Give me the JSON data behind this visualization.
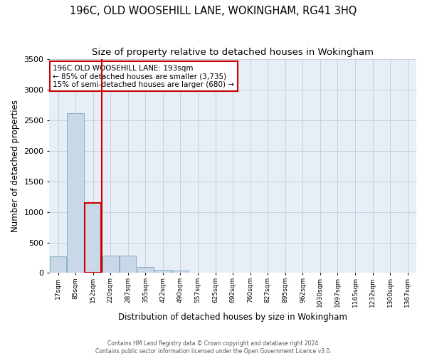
{
  "title": "196C, OLD WOOSEHILL LANE, WOKINGHAM, RG41 3HQ",
  "subtitle": "Size of property relative to detached houses in Wokingham",
  "xlabel": "Distribution of detached houses by size in Wokingham",
  "ylabel": "Number of detached properties",
  "bar_labels": [
    "17sqm",
    "85sqm",
    "152sqm",
    "220sqm",
    "287sqm",
    "355sqm",
    "422sqm",
    "490sqm",
    "557sqm",
    "625sqm",
    "692sqm",
    "760sqm",
    "827sqm",
    "895sqm",
    "962sqm",
    "1030sqm",
    "1097sqm",
    "1165sqm",
    "1232sqm",
    "1300sqm",
    "1367sqm"
  ],
  "bar_values": [
    270,
    2620,
    1150,
    285,
    285,
    95,
    55,
    35,
    0,
    0,
    0,
    0,
    0,
    0,
    0,
    0,
    0,
    0,
    0,
    0,
    0
  ],
  "bar_color": "#c8d8e8",
  "bar_edge_color": "#7aaabf",
  "highlight_bar_index": 2,
  "highlight_edge_color": "#cc0000",
  "property_line_x": 2.5,
  "ylim": [
    0,
    3500
  ],
  "yticks": [
    0,
    500,
    1000,
    1500,
    2000,
    2500,
    3000,
    3500
  ],
  "annotation_text": "196C OLD WOOSEHILL LANE: 193sqm\n← 85% of detached houses are smaller (3,735)\n15% of semi-detached houses are larger (680) →",
  "annotation_box_color": "#ffffff",
  "annotation_box_edge": "#cc0000",
  "grid_color": "#c8cfe0",
  "background_color": "#e8eef5",
  "footer_text": "Contains HM Land Registry data © Crown copyright and database right 2024.\nContains public sector information licensed under the Open Government Licence v3.0.",
  "title_fontsize": 10.5,
  "subtitle_fontsize": 9.5,
  "ylabel_fontsize": 8.5,
  "xlabel_fontsize": 8.5
}
